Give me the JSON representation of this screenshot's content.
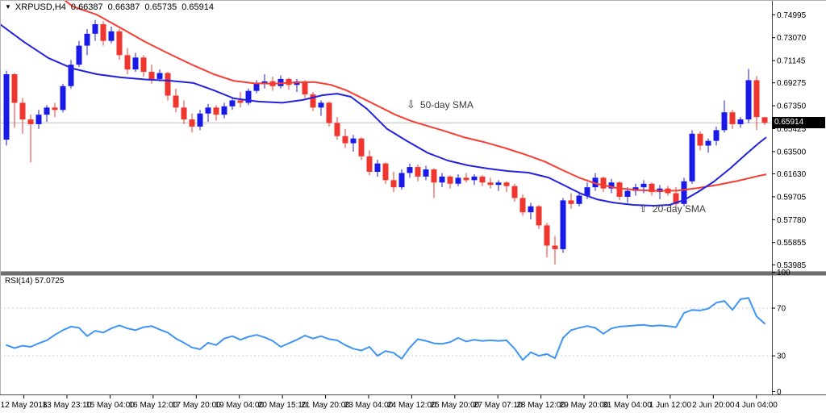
{
  "header": {
    "dropdown_icon": "▼",
    "symbol": "XRPUSD,H4",
    "open": "0.66387",
    "high": "0.66387",
    "low": "0.65735",
    "close": "0.65914"
  },
  "annotations": {
    "sma50": {
      "arrow": "⇩",
      "label": "50-day SMA"
    },
    "sma20": {
      "arrow": "⇧",
      "label": "20-day SMA"
    }
  },
  "rsi_panel": {
    "label": "RSI(14) 57.0725",
    "indicator": "RSI",
    "period": 14,
    "current_value": 57.0725,
    "levels": [
      "100",
      "70",
      "30",
      "0"
    ],
    "overbought": 70,
    "oversold": 30
  },
  "price_axis": {
    "labels": [
      "0.74995",
      "0.73070",
      "0.71145",
      "0.69275",
      "0.67350",
      "0.65425",
      "0.63500",
      "0.61630",
      "0.59705",
      "0.57780",
      "0.55855",
      "0.53985"
    ],
    "current_price": "0.65914",
    "min": 0.53985,
    "max": 0.74995
  },
  "time_axis": {
    "labels": [
      "12 May 2018",
      "13 May 23:10",
      "15 May 04:00",
      "16 May 12:00",
      "17 May 20:00",
      "19 May 04:00",
      "20 May 15:10",
      "21 May 20:00",
      "23 May 04:00",
      "24 May 12:00",
      "25 May 20:00",
      "27 May 07:10",
      "28 May 12:00",
      "29 May 20:00",
      "31 May 04:00",
      "1 Jun 12:00",
      "2 Jun 20:00",
      "4 Jun 04:00"
    ]
  },
  "colors": {
    "bull_candle": "#1a1ae8",
    "bear_candle": "#f0342e",
    "sma20_line": "#2222e0",
    "sma50_line": "#fa3c32",
    "rsi_line": "#3e95f5",
    "level_dash": "#c9c9c9",
    "bid_line": "#bdbdbd",
    "separator": "#6e6e6e",
    "axis_line": "#4a4a4a",
    "price_box_bg": "#000000",
    "price_box_text": "#ffffff"
  },
  "chart_data": {
    "type": "candlestick",
    "symbol": "XRPUSD",
    "timeframe": "H4",
    "title": "XRPUSD,H4",
    "ylim": [
      0.53985,
      0.74995
    ],
    "grid": "off",
    "current_bid": 0.65914,
    "last_ohlc": {
      "open": 0.66387,
      "high": 0.66387,
      "low": 0.65735,
      "close": 0.65914
    },
    "candles": [
      [
        0.645,
        0.703,
        0.64,
        0.7
      ],
      [
        0.7,
        0.701,
        0.655,
        0.676
      ],
      [
        0.676,
        0.68,
        0.65,
        0.662
      ],
      [
        0.662,
        0.666,
        0.626,
        0.658
      ],
      [
        0.658,
        0.67,
        0.654,
        0.666
      ],
      [
        0.666,
        0.674,
        0.66,
        0.672
      ],
      [
        0.672,
        0.676,
        0.664,
        0.67
      ],
      [
        0.67,
        0.692,
        0.668,
        0.69
      ],
      [
        0.69,
        0.712,
        0.688,
        0.708
      ],
      [
        0.708,
        0.728,
        0.706,
        0.724
      ],
      [
        0.724,
        0.738,
        0.716,
        0.734
      ],
      [
        0.734,
        0.7455,
        0.728,
        0.742
      ],
      [
        0.742,
        0.7445,
        0.724,
        0.728
      ],
      [
        0.728,
        0.74,
        0.726,
        0.736
      ],
      [
        0.736,
        0.738,
        0.712,
        0.716
      ],
      [
        0.716,
        0.722,
        0.7,
        0.704
      ],
      [
        0.704,
        0.718,
        0.702,
        0.714
      ],
      [
        0.714,
        0.716,
        0.698,
        0.702
      ],
      [
        0.702,
        0.708,
        0.692,
        0.696
      ],
      [
        0.696,
        0.704,
        0.694,
        0.701
      ],
      [
        0.701,
        0.702,
        0.678,
        0.682
      ],
      [
        0.682,
        0.688,
        0.668,
        0.672
      ],
      [
        0.672,
        0.678,
        0.658,
        0.662
      ],
      [
        0.662,
        0.667,
        0.651,
        0.656
      ],
      [
        0.656,
        0.67,
        0.653,
        0.667
      ],
      [
        0.667,
        0.675,
        0.66,
        0.672
      ],
      [
        0.672,
        0.674,
        0.661,
        0.666
      ],
      [
        0.666,
        0.676,
        0.663,
        0.673
      ],
      [
        0.673,
        0.68,
        0.67,
        0.678
      ],
      [
        0.678,
        0.685,
        0.672,
        0.676
      ],
      [
        0.676,
        0.688,
        0.674,
        0.686
      ],
      [
        0.686,
        0.695,
        0.684,
        0.692
      ],
      [
        0.692,
        0.7,
        0.688,
        0.694
      ],
      [
        0.694,
        0.698,
        0.686,
        0.69
      ],
      [
        0.69,
        0.699,
        0.688,
        0.696
      ],
      [
        0.696,
        0.697,
        0.687,
        0.691
      ],
      [
        0.691,
        0.696,
        0.685,
        0.694
      ],
      [
        0.694,
        0.695,
        0.68,
        0.683
      ],
      [
        0.683,
        0.685,
        0.669,
        0.672
      ],
      [
        0.672,
        0.678,
        0.665,
        0.676
      ],
      [
        0.676,
        0.677,
        0.656,
        0.659
      ],
      [
        0.659,
        0.664,
        0.645,
        0.648
      ],
      [
        0.648,
        0.654,
        0.638,
        0.642
      ],
      [
        0.642,
        0.649,
        0.635,
        0.646
      ],
      [
        0.646,
        0.647,
        0.628,
        0.631
      ],
      [
        0.631,
        0.636,
        0.615,
        0.618
      ],
      [
        0.618,
        0.628,
        0.614,
        0.625
      ],
      [
        0.625,
        0.626,
        0.608,
        0.611
      ],
      [
        0.611,
        0.618,
        0.601,
        0.605
      ],
      [
        0.605,
        0.62,
        0.603,
        0.617
      ],
      [
        0.617,
        0.625,
        0.613,
        0.622
      ],
      [
        0.622,
        0.624,
        0.61,
        0.614
      ],
      [
        0.614,
        0.623,
        0.611,
        0.62
      ],
      [
        0.62,
        0.621,
        0.596,
        0.609
      ],
      [
        0.609,
        0.617,
        0.605,
        0.614
      ],
      [
        0.614,
        0.615,
        0.604,
        0.608
      ],
      [
        0.608,
        0.616,
        0.606,
        0.613
      ],
      [
        0.613,
        0.617,
        0.609,
        0.611
      ],
      [
        0.611,
        0.616,
        0.607,
        0.614
      ],
      [
        0.614,
        0.615,
        0.606,
        0.609
      ],
      [
        0.609,
        0.613,
        0.604,
        0.607
      ],
      [
        0.607,
        0.611,
        0.602,
        0.609
      ],
      [
        0.609,
        0.61,
        0.601,
        0.606
      ],
      [
        0.606,
        0.608,
        0.593,
        0.596
      ],
      [
        0.596,
        0.599,
        0.581,
        0.584
      ],
      [
        0.584,
        0.592,
        0.578,
        0.589
      ],
      [
        0.589,
        0.59,
        0.57,
        0.573
      ],
      [
        0.573,
        0.575,
        0.546,
        0.556
      ],
      [
        0.556,
        0.564,
        0.53985,
        0.553
      ],
      [
        0.553,
        0.596,
        0.55,
        0.594
      ],
      [
        0.594,
        0.6,
        0.587,
        0.591
      ],
      [
        0.591,
        0.601,
        0.589,
        0.598
      ],
      [
        0.598,
        0.609,
        0.595,
        0.605
      ],
      [
        0.605,
        0.617,
        0.602,
        0.613
      ],
      [
        0.613,
        0.614,
        0.601,
        0.604
      ],
      [
        0.604,
        0.612,
        0.6,
        0.609
      ],
      [
        0.609,
        0.61,
        0.594,
        0.597
      ],
      [
        0.597,
        0.605,
        0.592,
        0.602
      ],
      [
        0.602,
        0.608,
        0.598,
        0.605
      ],
      [
        0.605,
        0.611,
        0.6,
        0.608
      ],
      [
        0.608,
        0.609,
        0.598,
        0.601
      ],
      [
        0.601,
        0.607,
        0.595,
        0.604
      ],
      [
        0.604,
        0.606,
        0.598,
        0.6
      ],
      [
        0.6,
        0.605,
        0.587,
        0.591
      ],
      [
        0.591,
        0.613,
        0.589,
        0.61
      ],
      [
        0.61,
        0.653,
        0.608,
        0.65
      ],
      [
        0.65,
        0.652,
        0.636,
        0.64
      ],
      [
        0.64,
        0.646,
        0.634,
        0.644
      ],
      [
        0.644,
        0.656,
        0.64,
        0.653
      ],
      [
        0.653,
        0.678,
        0.651,
        0.668
      ],
      [
        0.668,
        0.67,
        0.654,
        0.658
      ],
      [
        0.658,
        0.664,
        0.655,
        0.662
      ],
      [
        0.662,
        0.7045,
        0.659,
        0.695
      ],
      [
        0.695,
        0.6985,
        0.653,
        0.664
      ],
      [
        0.66387,
        0.66387,
        0.65735,
        0.65914
      ]
    ],
    "sma20": [
      [
        -0.8,
        0.742
      ],
      [
        2.2,
        0.727
      ],
      [
        5.2,
        0.7136
      ],
      [
        8.2,
        0.7048
      ],
      [
        11.2,
        0.7
      ],
      [
        14.2,
        0.6973
      ],
      [
        17.2,
        0.6956
      ],
      [
        20.2,
        0.6946
      ],
      [
        23.2,
        0.6926
      ],
      [
        25.7,
        0.6865
      ],
      [
        28.2,
        0.6797
      ],
      [
        31.2,
        0.677
      ],
      [
        34.2,
        0.676
      ],
      [
        36.7,
        0.6783
      ],
      [
        39.2,
        0.6824
      ],
      [
        41,
        0.6837
      ],
      [
        42.7,
        0.681
      ],
      [
        44.7,
        0.6708
      ],
      [
        47.2,
        0.654
      ],
      [
        49.7,
        0.6437
      ],
      [
        52.2,
        0.634
      ],
      [
        54.7,
        0.6275
      ],
      [
        57.2,
        0.6234
      ],
      [
        59.7,
        0.6207
      ],
      [
        62.2,
        0.6186
      ],
      [
        64.7,
        0.6173
      ],
      [
        67.2,
        0.6132
      ],
      [
        69.2,
        0.6065
      ],
      [
        71.2,
        0.5997
      ],
      [
        73.2,
        0.5949
      ],
      [
        75.2,
        0.5922
      ],
      [
        77.7,
        0.5902
      ],
      [
        80.2,
        0.5895
      ],
      [
        82.2,
        0.5902
      ],
      [
        84,
        0.5943
      ],
      [
        85.7,
        0.601
      ],
      [
        87.7,
        0.6098
      ],
      [
        89.7,
        0.6207
      ],
      [
        91.7,
        0.6329
      ],
      [
        93.2,
        0.6417
      ],
      [
        94.2,
        0.6471
      ]
    ],
    "sma50": [
      [
        6.5,
        0.766
      ],
      [
        8.2,
        0.757
      ],
      [
        11.2,
        0.75
      ],
      [
        14.2,
        0.7387
      ],
      [
        17.2,
        0.7272
      ],
      [
        20.2,
        0.717
      ],
      [
        23.2,
        0.7074
      ],
      [
        25.7,
        0.7
      ],
      [
        28.2,
        0.6944
      ],
      [
        30.7,
        0.6924
      ],
      [
        33.2,
        0.6921
      ],
      [
        35.7,
        0.6931
      ],
      [
        38.2,
        0.6934
      ],
      [
        40.2,
        0.6911
      ],
      [
        42.2,
        0.6863
      ],
      [
        44.2,
        0.6795
      ],
      [
        46.2,
        0.6728
      ],
      [
        48.2,
        0.666
      ],
      [
        50.2,
        0.6606
      ],
      [
        52.2,
        0.6565
      ],
      [
        54.2,
        0.6525
      ],
      [
        56.7,
        0.6471
      ],
      [
        59.2,
        0.643
      ],
      [
        61.7,
        0.6382
      ],
      [
        64.2,
        0.6328
      ],
      [
        66.7,
        0.6267
      ],
      [
        69.2,
        0.6186
      ],
      [
        71.2,
        0.6125
      ],
      [
        73.2,
        0.6078
      ],
      [
        75.7,
        0.6044
      ],
      [
        78.2,
        0.6027
      ],
      [
        80.7,
        0.602
      ],
      [
        83.2,
        0.6023
      ],
      [
        85.7,
        0.6044
      ],
      [
        88.2,
        0.6071
      ],
      [
        90.7,
        0.6105
      ],
      [
        93.2,
        0.6145
      ],
      [
        94.2,
        0.6159
      ]
    ],
    "rsi_values": [
      39,
      36.5,
      38.5,
      37.5,
      40.5,
      43,
      47.5,
      51.5,
      54.5,
      53.5,
      46.5,
      51,
      49.5,
      53,
      55.5,
      53,
      51.5,
      54,
      55,
      52,
      49.5,
      44.5,
      41,
      37,
      35.5,
      41,
      39,
      44.5,
      46.5,
      43.5,
      46,
      47.5,
      45.5,
      42.5,
      37.5,
      40.5,
      43.5,
      47,
      44.5,
      46.5,
      44,
      43,
      39,
      36,
      34.5,
      37.5,
      30,
      34,
      32.5,
      27.5,
      37,
      44,
      42.5,
      40.5,
      40,
      41.5,
      45,
      42,
      43.5,
      42.5,
      43,
      42.5,
      43,
      36,
      26.5,
      33,
      30,
      31.5,
      28,
      45,
      51.5,
      53.5,
      55,
      53.5,
      48.5,
      53,
      54.5,
      55,
      55.5,
      56,
      55,
      55.5,
      55,
      54,
      66,
      68.5,
      68,
      69.5,
      74.5,
      76,
      68.5,
      77.5,
      78.5,
      63,
      57.07
    ]
  }
}
